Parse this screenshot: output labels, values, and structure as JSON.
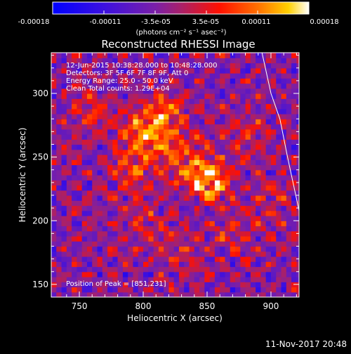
{
  "colorbar": {
    "ticks": [
      "-0.00018",
      "-0.00011",
      "-3.5e-05",
      "3.5e-05",
      "0.00011",
      "0.00018"
    ],
    "unit": "(photons cm⁻² s⁻¹ asec⁻²)"
  },
  "title": "Reconstructed RHESSI Image",
  "info_lines": [
    "12-Jun-2015 10:38:28.000 to 10:48:28.000",
    "Detectors: 3F 5F 6F 7F 8F 9F, Att 0",
    "Energy Range: 25.0 - 50.0 keV",
    "Clean     Total counts: 1.29E+04"
  ],
  "peak_label": "Position of Peak = [851,231]",
  "timestamp": "11-Nov-2017 20:48",
  "chart_data": {
    "type": "heatmap",
    "title": "Reconstructed RHESSI Image",
    "xlabel": "Heliocentric X (arcsec)",
    "ylabel": "Heliocentric Y (arcsec)",
    "xlim": [
      728,
      922
    ],
    "ylim": [
      140,
      332
    ],
    "xticks": [
      750,
      800,
      850,
      900
    ],
    "yticks": [
      150,
      200,
      250,
      300
    ],
    "color_range": [
      -0.00018,
      0.00018
    ],
    "peak": [
      851,
      231
    ],
    "sources": [
      {
        "x": 851,
        "y": 231,
        "amp": 1.0,
        "sigma": 10
      },
      {
        "x": 803,
        "y": 268,
        "amp": 0.7,
        "sigma": 13
      },
      {
        "x": 818,
        "y": 288,
        "amp": 0.55,
        "sigma": 10
      },
      {
        "x": 832,
        "y": 250,
        "amp": 0.45,
        "sigma": 14
      },
      {
        "x": 790,
        "y": 240,
        "amp": 0.4,
        "sigma": 12
      },
      {
        "x": 800,
        "y": 200,
        "amp": 0.3,
        "sigma": 12
      },
      {
        "x": 830,
        "y": 175,
        "amp": 0.25,
        "sigma": 12
      },
      {
        "x": 880,
        "y": 265,
        "amp": 0.3,
        "sigma": 12
      },
      {
        "x": 900,
        "y": 215,
        "amp": 0.25,
        "sigma": 12
      },
      {
        "x": 760,
        "y": 285,
        "amp": 0.3,
        "sigma": 11
      },
      {
        "x": 870,
        "y": 190,
        "amp": 0.3,
        "sigma": 12
      }
    ],
    "limb": [
      [
        893,
        332
      ],
      [
        900,
        300
      ],
      [
        907,
        280
      ],
      [
        913,
        250
      ],
      [
        922,
        208
      ]
    ],
    "colors": {
      "axes": "#ffffff",
      "background": "#000000"
    }
  }
}
